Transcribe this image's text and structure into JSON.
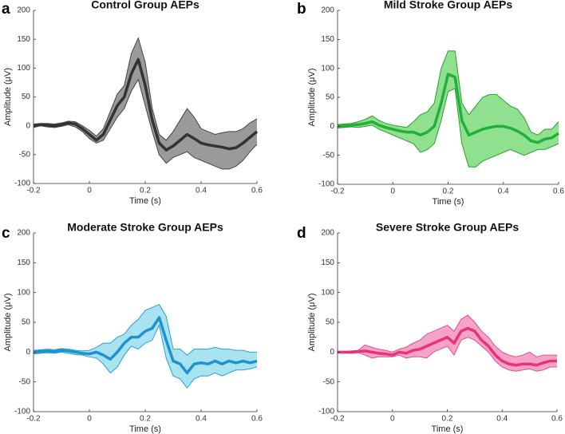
{
  "chart_data": [
    {
      "type": "line",
      "panel": "a",
      "title": "Control Group AEPs",
      "xlabel": "Time (s)",
      "ylabel": "Amplitude (μV)",
      "x": [
        -0.2,
        -0.175,
        -0.15,
        -0.125,
        -0.1,
        -0.075,
        -0.05,
        -0.025,
        0,
        0.025,
        0.05,
        0.075,
        0.1,
        0.125,
        0.15,
        0.175,
        0.2,
        0.225,
        0.25,
        0.275,
        0.3,
        0.325,
        0.35,
        0.375,
        0.4,
        0.425,
        0.45,
        0.475,
        0.5,
        0.525,
        0.55,
        0.575,
        0.6
      ],
      "values": [
        0,
        2,
        1,
        0,
        2,
        5,
        3,
        -5,
        -15,
        -25,
        -15,
        10,
        35,
        50,
        90,
        115,
        70,
        10,
        -30,
        -42,
        -35,
        -25,
        -15,
        -22,
        -30,
        -33,
        -35,
        -37,
        -40,
        -38,
        -30,
        -20,
        -10
      ],
      "upper": [
        3,
        4,
        4,
        3,
        5,
        8,
        7,
        0,
        -8,
        -18,
        -5,
        25,
        55,
        70,
        125,
        152,
        110,
        30,
        -15,
        -25,
        -10,
        10,
        30,
        15,
        -5,
        -10,
        -15,
        -12,
        -10,
        -10,
        -5,
        5,
        12
      ],
      "lower": [
        -3,
        0,
        -2,
        -3,
        -1,
        2,
        -2,
        -10,
        -22,
        -30,
        -25,
        -5,
        15,
        30,
        60,
        80,
        35,
        -10,
        -50,
        -65,
        -55,
        -50,
        -45,
        -55,
        -60,
        -65,
        -70,
        -75,
        -75,
        -70,
        -60,
        -45,
        -32
      ],
      "color": "#333333",
      "band_color": "#9a9a9a",
      "edge_color": "#444444",
      "xlim": [
        -0.2,
        0.6
      ],
      "ylim": [
        -100,
        200
      ],
      "xticks": [
        -0.2,
        0,
        0.2,
        0.4,
        0.6
      ],
      "yticks": [
        -100,
        -50,
        0,
        50,
        100,
        150,
        200
      ]
    },
    {
      "type": "line",
      "panel": "b",
      "title": "Mild Stroke Group AEPs",
      "xlabel": "Time (s)",
      "ylabel": "Amplitude (μV)",
      "x": [
        -0.2,
        -0.175,
        -0.15,
        -0.125,
        -0.1,
        -0.075,
        -0.05,
        -0.025,
        0,
        0.025,
        0.05,
        0.075,
        0.1,
        0.125,
        0.15,
        0.175,
        0.2,
        0.225,
        0.25,
        0.275,
        0.3,
        0.325,
        0.35,
        0.375,
        0.4,
        0.425,
        0.45,
        0.475,
        0.5,
        0.525,
        0.55,
        0.575,
        0.6
      ],
      "values": [
        0,
        1,
        2,
        3,
        5,
        8,
        2,
        -2,
        -5,
        -8,
        -10,
        -10,
        -15,
        -10,
        0,
        40,
        90,
        85,
        10,
        -15,
        -10,
        -5,
        -2,
        0,
        0,
        -3,
        -8,
        -15,
        -25,
        -28,
        -22,
        -20,
        -12
      ],
      "upper": [
        3,
        4,
        5,
        8,
        12,
        18,
        10,
        5,
        2,
        0,
        -2,
        8,
        20,
        25,
        40,
        100,
        130,
        130,
        40,
        20,
        35,
        50,
        55,
        55,
        45,
        35,
        30,
        15,
        -10,
        -15,
        -5,
        -5,
        8
      ],
      "lower": [
        -3,
        -2,
        -1,
        -2,
        0,
        2,
        -5,
        -10,
        -15,
        -20,
        -25,
        -30,
        -45,
        -40,
        -30,
        10,
        60,
        65,
        -30,
        -70,
        -70,
        -60,
        -55,
        -50,
        -45,
        -40,
        -45,
        -50,
        -45,
        -40,
        -40,
        -35,
        -30
      ],
      "color": "#22b03a",
      "band_color": "#8fe08f",
      "edge_color": "#2ca02c",
      "xlim": [
        -0.2,
        0.6
      ],
      "ylim": [
        -100,
        200
      ],
      "xticks": [
        -0.2,
        0,
        0.2,
        0.4,
        0.6
      ],
      "yticks": [
        -100,
        -50,
        0,
        50,
        100,
        150,
        200
      ]
    },
    {
      "type": "line",
      "panel": "c",
      "title": "Moderate Stroke Group AEPs",
      "xlabel": "Time (s)",
      "ylabel": "Amplitude (μV)",
      "x": [
        -0.2,
        -0.175,
        -0.15,
        -0.125,
        -0.1,
        -0.075,
        -0.05,
        -0.025,
        0,
        0.025,
        0.05,
        0.075,
        0.1,
        0.125,
        0.15,
        0.175,
        0.2,
        0.225,
        0.25,
        0.275,
        0.3,
        0.325,
        0.35,
        0.375,
        0.4,
        0.425,
        0.45,
        0.475,
        0.5,
        0.525,
        0.55,
        0.575,
        0.6
      ],
      "values": [
        0,
        1,
        2,
        1,
        3,
        2,
        0,
        -2,
        -3,
        0,
        -5,
        -12,
        0,
        15,
        25,
        25,
        35,
        40,
        58,
        20,
        -15,
        -20,
        -35,
        -20,
        -18,
        -20,
        -15,
        -20,
        -15,
        -18,
        -15,
        -18,
        -15
      ],
      "upper": [
        3,
        4,
        5,
        4,
        6,
        5,
        3,
        2,
        3,
        8,
        15,
        15,
        25,
        30,
        45,
        55,
        70,
        75,
        80,
        60,
        5,
        5,
        -5,
        5,
        5,
        5,
        8,
        5,
        5,
        3,
        3,
        0,
        0
      ],
      "lower": [
        -3,
        -2,
        -1,
        -2,
        0,
        -2,
        -4,
        -5,
        -8,
        -10,
        -20,
        -35,
        -25,
        -5,
        10,
        5,
        15,
        20,
        45,
        -10,
        -40,
        -45,
        -60,
        -45,
        -40,
        -40,
        -35,
        -40,
        -35,
        -30,
        -30,
        -28,
        -25
      ],
      "color": "#2190d0",
      "band_color": "#a8e4f0",
      "edge_color": "#2a9fd8",
      "xlim": [
        -0.2,
        0.6
      ],
      "ylim": [
        -100,
        200
      ],
      "xticks": [
        -0.2,
        0,
        0.2,
        0.4,
        0.6
      ],
      "yticks": [
        -100,
        -50,
        0,
        50,
        100,
        150,
        200
      ]
    },
    {
      "type": "line",
      "panel": "d",
      "title": "Severe Stroke Group AEPs",
      "xlabel": "Time (s)",
      "ylabel": "Amplitude (μV)",
      "x": [
        -0.2,
        -0.175,
        -0.15,
        -0.125,
        -0.1,
        -0.075,
        -0.05,
        -0.025,
        0,
        0.025,
        0.05,
        0.075,
        0.1,
        0.125,
        0.15,
        0.175,
        0.2,
        0.225,
        0.25,
        0.275,
        0.3,
        0.325,
        0.35,
        0.375,
        0.4,
        0.425,
        0.45,
        0.475,
        0.5,
        0.525,
        0.55,
        0.575,
        0.6
      ],
      "values": [
        0,
        0,
        0,
        1,
        2,
        0,
        -2,
        -3,
        -5,
        0,
        -2,
        3,
        5,
        10,
        15,
        20,
        25,
        15,
        35,
        40,
        35,
        20,
        10,
        -5,
        -15,
        -20,
        -22,
        -20,
        -20,
        -22,
        -18,
        -15,
        -15
      ],
      "upper": [
        1,
        1,
        2,
        3,
        12,
        8,
        5,
        3,
        0,
        5,
        8,
        15,
        20,
        30,
        35,
        40,
        45,
        35,
        55,
        62,
        50,
        35,
        25,
        10,
        0,
        -5,
        -8,
        -5,
        0,
        -8,
        -5,
        -5,
        -5
      ],
      "lower": [
        -1,
        -1,
        -2,
        -1,
        -5,
        -10,
        -8,
        -8,
        -8,
        -5,
        -10,
        -8,
        -8,
        -10,
        0,
        5,
        10,
        -5,
        20,
        25,
        20,
        10,
        0,
        -15,
        -25,
        -30,
        -32,
        -30,
        -28,
        -32,
        -30,
        -25,
        -25
      ],
      "color": "#e8337a",
      "band_color": "#f5a3c8",
      "edge_color": "#e0508a",
      "xlim": [
        -0.2,
        0.6
      ],
      "ylim": [
        -100,
        200
      ],
      "xticks": [
        -0.2,
        0,
        0.2,
        0.4,
        0.6
      ],
      "yticks": [
        -100,
        -50,
        0,
        50,
        100,
        150,
        200
      ]
    }
  ]
}
